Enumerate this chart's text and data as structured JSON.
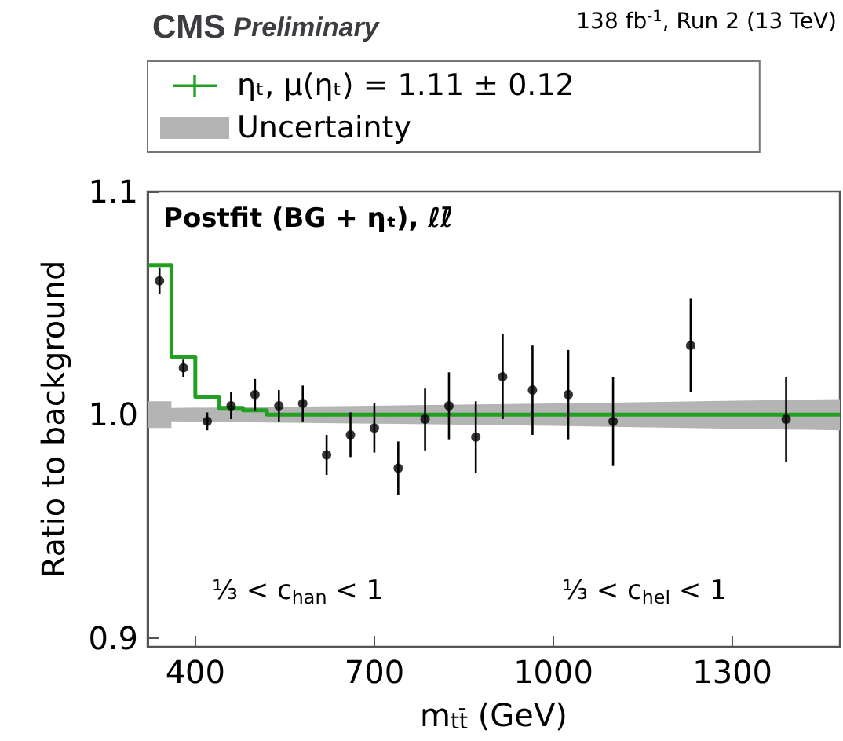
{
  "chart_data": {
    "type": "scatter",
    "title": "CMS",
    "subtitle": "Preliminary",
    "xlabel": "m$_{tt̄}$ (GeV)",
    "ylabel": "Ratio to background",
    "annotations": [
      "138 fb$^{-1}$, Run 2 (13 TeV)",
      "Postfit (BG + ηₜ), ℓℓ̄",
      "⅓ < c$_{han}$ < 1",
      "⅓ < c$_{hel}$ < 1"
    ],
    "xlim": [
      320,
      1480
    ],
    "ylim": [
      0.896,
      1.1
    ],
    "xticks": [
      400,
      700,
      1000,
      1300
    ],
    "yticks": [
      {
        "value": 0.9,
        "label": "0.9"
      },
      {
        "value": 1,
        "label": "1.0"
      },
      {
        "value": 1.1,
        "label": "1.1"
      }
    ],
    "grid": false,
    "legend": "top",
    "series": [
      {
        "type": "step",
        "name": "ηₜ, μ(ηₜ) = 1.11 ± 0.12",
        "color": "#22a022",
        "x": [
          320,
          360,
          400,
          440,
          480,
          520,
          1480
        ],
        "values": [
          1.067,
          1.026,
          1.008,
          1.003,
          1.002,
          1.0,
          1.0
        ]
      },
      {
        "type": "line",
        "name": "Uncertainty",
        "color": "#b4b4b4",
        "x": [
          320,
          360,
          360,
          700,
          1000,
          1480
        ],
        "values": [
          null,
          null,
          null,
          null,
          null,
          null
        ],
        "lower": [
          0.994,
          0.994,
          0.997,
          0.996,
          0.995,
          0.993
        ],
        "upper": [
          1.006,
          1.006,
          1.003,
          1.004,
          1.005,
          1.007
        ]
      },
      {
        "color": "#000000",
        "marker": "circle",
        "x": [
          340,
          380,
          420,
          460,
          500,
          540,
          580,
          620,
          660,
          700,
          740,
          785,
          825,
          870,
          915,
          965,
          1025,
          1100,
          1230,
          1390
        ],
        "values": [
          1.06,
          1.021,
          0.997,
          1.004,
          1.009,
          1.004,
          1.005,
          0.982,
          0.991,
          0.994,
          0.976,
          0.998,
          1.004,
          0.99,
          1.017,
          1.011,
          1.009,
          0.997,
          1.031,
          0.998
        ],
        "errors": [
          0.006,
          0.004,
          0.004,
          0.006,
          0.007,
          0.007,
          0.008,
          0.009,
          0.01,
          0.011,
          0.012,
          0.014,
          0.015,
          0.016,
          0.019,
          0.02,
          0.02,
          0.02,
          0.021,
          0.019
        ]
      }
    ]
  }
}
